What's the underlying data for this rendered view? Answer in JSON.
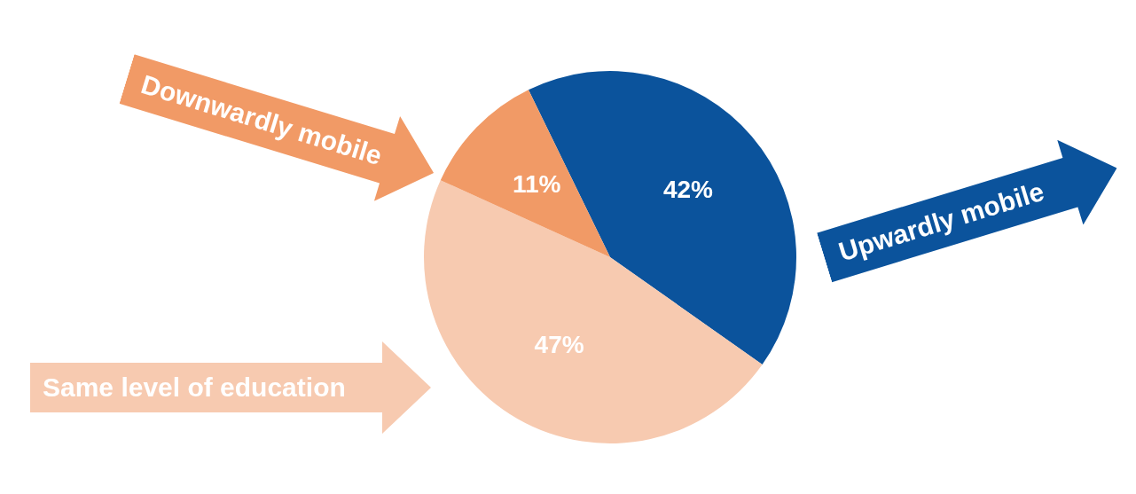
{
  "chart_data": {
    "type": "pie",
    "categories": [
      "Upwardly mobile",
      "Same level of education",
      "Downwardly mobile"
    ],
    "values": [
      42,
      47,
      11
    ],
    "colors": [
      "#0b539c",
      "#f7cab0",
      "#f19a66"
    ],
    "value_labels": [
      "42%",
      "47%",
      "11%"
    ]
  }
}
